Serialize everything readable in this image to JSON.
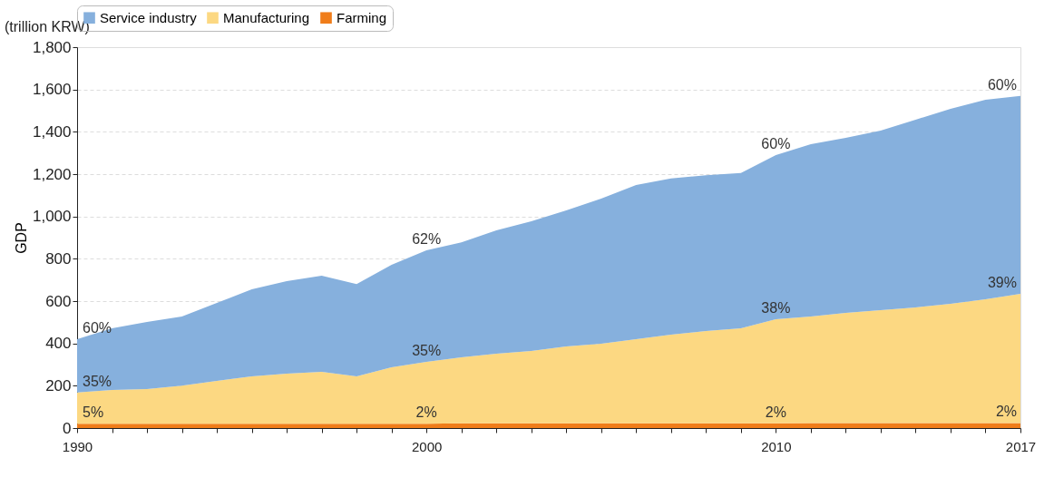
{
  "chart_data": {
    "type": "area",
    "stacked": true,
    "ylabel": "GDP",
    "x": [
      1990,
      1991,
      1992,
      1993,
      1994,
      1995,
      1996,
      1997,
      1998,
      1999,
      2000,
      2001,
      2002,
      2003,
      2004,
      2005,
      2006,
      2007,
      2008,
      2009,
      2010,
      2011,
      2012,
      2013,
      2014,
      2015,
      2016,
      2017
    ],
    "series": [
      {
        "name": "Farming",
        "color": "#f07d1a",
        "values": [
          20,
          20,
          20,
          20,
          20,
          20,
          20,
          20,
          20,
          20,
          20,
          22,
          22,
          22,
          22,
          22,
          22,
          22,
          22,
          22,
          22,
          24,
          24,
          24,
          24,
          24,
          24,
          24
        ]
      },
      {
        "name": "Manufacturing",
        "color": "#fcd882",
        "values": [
          148,
          160,
          164,
          180,
          203,
          224,
          237,
          246,
          224,
          267,
          293,
          312,
          329,
          342,
          364,
          377,
          398,
          419,
          437,
          449,
          492,
          503,
          520,
          533,
          546,
          563,
          585,
          610
        ]
      },
      {
        "name": "Service industry",
        "color": "#86b0dd",
        "values": [
          252,
          291,
          317,
          327,
          368,
          412,
          437,
          454,
          436,
          484,
          527,
          544,
          583,
          613,
          643,
          685,
          729,
          739,
          736,
          734,
          776,
          814,
          827,
          849,
          887,
          922,
          942,
          936
        ]
      }
    ],
    "xlim": [
      1990,
      2017
    ],
    "xticks": [
      1990,
      {
        "value": 1991,
        "label": null
      },
      {
        "value": 1992,
        "label": null
      },
      {
        "value": 1993,
        "label": null
      },
      {
        "value": 1994,
        "label": null
      },
      {
        "value": 1995,
        "label": null
      },
      {
        "value": 1996,
        "label": null
      },
      {
        "value": 1997,
        "label": null
      },
      {
        "value": 1998,
        "label": null
      },
      {
        "value": 1999,
        "label": null
      },
      2000,
      {
        "value": 2001,
        "label": null
      },
      {
        "value": 2002,
        "label": null
      },
      {
        "value": 2003,
        "label": null
      },
      {
        "value": 2004,
        "label": null
      },
      {
        "value": 2005,
        "label": null
      },
      {
        "value": 2006,
        "label": null
      },
      {
        "value": 2007,
        "label": null
      },
      {
        "value": 2008,
        "label": null
      },
      {
        "value": 2009,
        "label": null
      },
      2010,
      {
        "value": 2011,
        "label": null
      },
      {
        "value": 2012,
        "label": null
      },
      {
        "value": 2013,
        "label": null
      },
      {
        "value": 2014,
        "label": null
      },
      {
        "value": 2015,
        "label": null
      },
      {
        "value": 2016,
        "label": null
      },
      2017
    ],
    "ylim": [
      0,
      1800
    ],
    "yticks": [
      0,
      200,
      400,
      600,
      800,
      {
        "value": 1000,
        "label": "1,000"
      },
      {
        "value": 1200,
        "label": "1,200"
      },
      {
        "value": 1400,
        "label": "1,400"
      },
      {
        "value": 1600,
        "label": "1,600"
      },
      {
        "value": 1800,
        "label": "1,800"
      }
    ],
    "grid": "y",
    "legend": "top",
    "annotations": [
      "(trillion KRW)",
      {
        "text": "60%",
        "x": 1990,
        "y": 420
      },
      {
        "text": "35%",
        "x": 1990,
        "y": 168
      },
      {
        "text": "5%",
        "x": 1990,
        "y": 20
      },
      {
        "text": "62%",
        "x": 2000,
        "y": 840
      },
      {
        "text": "35%",
        "x": 2000,
        "y": 313
      },
      {
        "text": "2%",
        "x": 2000,
        "y": 20
      },
      {
        "text": "60%",
        "x": 2010,
        "y": 1290
      },
      {
        "text": "38%",
        "x": 2010,
        "y": 514
      },
      {
        "text": "2%",
        "x": 2010,
        "y": 22
      },
      {
        "text": "60%",
        "x": 2017,
        "y": 1570
      },
      {
        "text": "39%",
        "x": 2017,
        "y": 634
      },
      {
        "text": "2%",
        "x": 2017,
        "y": 24
      }
    ]
  }
}
